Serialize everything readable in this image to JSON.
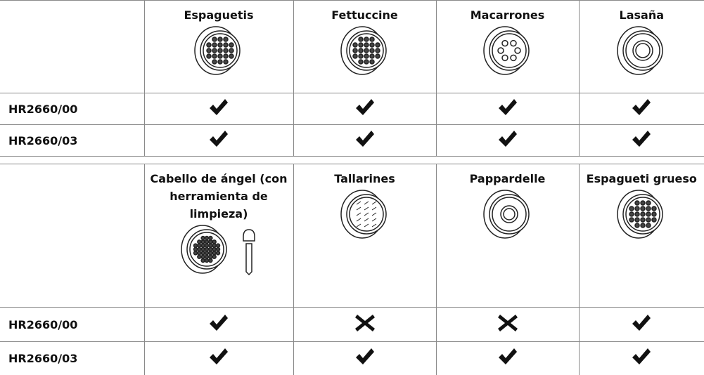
{
  "tables": [
    {
      "columns": [
        "Espaguetis",
        "Fettuccine",
        "Macarrones",
        "Lasaña"
      ],
      "rows": [
        {
          "model": "HR2660/00",
          "compatible": [
            true,
            true,
            true,
            true
          ]
        },
        {
          "model": "HR2660/03",
          "compatible": [
            true,
            true,
            true,
            true
          ]
        }
      ]
    },
    {
      "columns": [
        "Cabello de ángel (con herramienta de limpieza)",
        "Tallarines",
        "Pappardelle",
        "Espagueti grueso"
      ],
      "rows": [
        {
          "model": "HR2660/00",
          "compatible": [
            true,
            false,
            false,
            true
          ]
        },
        {
          "model": "HR2660/03",
          "compatible": [
            true,
            true,
            true,
            true
          ]
        }
      ]
    }
  ]
}
